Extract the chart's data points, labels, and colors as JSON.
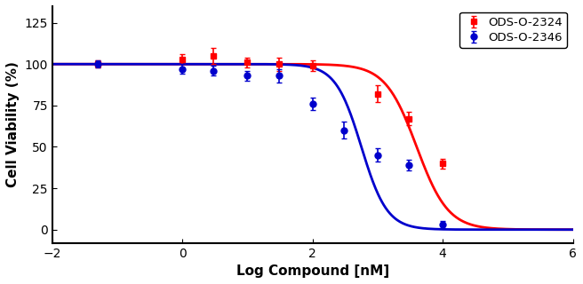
{
  "title": "",
  "xlabel": "Log Compound [nM]",
  "ylabel": "Cell Viability (%)",
  "xlim": [
    -2,
    6
  ],
  "ylim": [
    -8,
    135
  ],
  "xticks": [
    -2,
    0,
    2,
    4,
    6
  ],
  "yticks": [
    0,
    25,
    50,
    75,
    100,
    125
  ],
  "red_label": "ODS-O-2324",
  "blue_label": "ODS-O-2346",
  "red_color": "#FF0000",
  "blue_color": "#0000CC",
  "red_x": [
    -1.3,
    0,
    0.48,
    1.0,
    1.48,
    2.0,
    3.0,
    3.48,
    4.0
  ],
  "red_y": [
    100,
    103,
    105,
    101,
    100,
    99,
    82,
    67,
    40
  ],
  "red_yerr": [
    2,
    3,
    5,
    3,
    4,
    3,
    5,
    4,
    3
  ],
  "blue_x": [
    -1.3,
    0,
    0.48,
    1.0,
    1.48,
    2.0,
    2.48,
    3.0,
    3.48,
    4.0
  ],
  "blue_y": [
    100,
    97,
    96,
    93,
    93,
    76,
    60,
    45,
    39,
    3
  ],
  "blue_yerr": [
    2,
    3,
    3,
    3,
    4,
    4,
    5,
    4,
    3,
    2
  ],
  "red_ic50_log": 3.6,
  "blue_ic50_log": 2.75,
  "red_hill": 1.8,
  "blue_hill": 2.2,
  "background_color": "#FFFFFF"
}
